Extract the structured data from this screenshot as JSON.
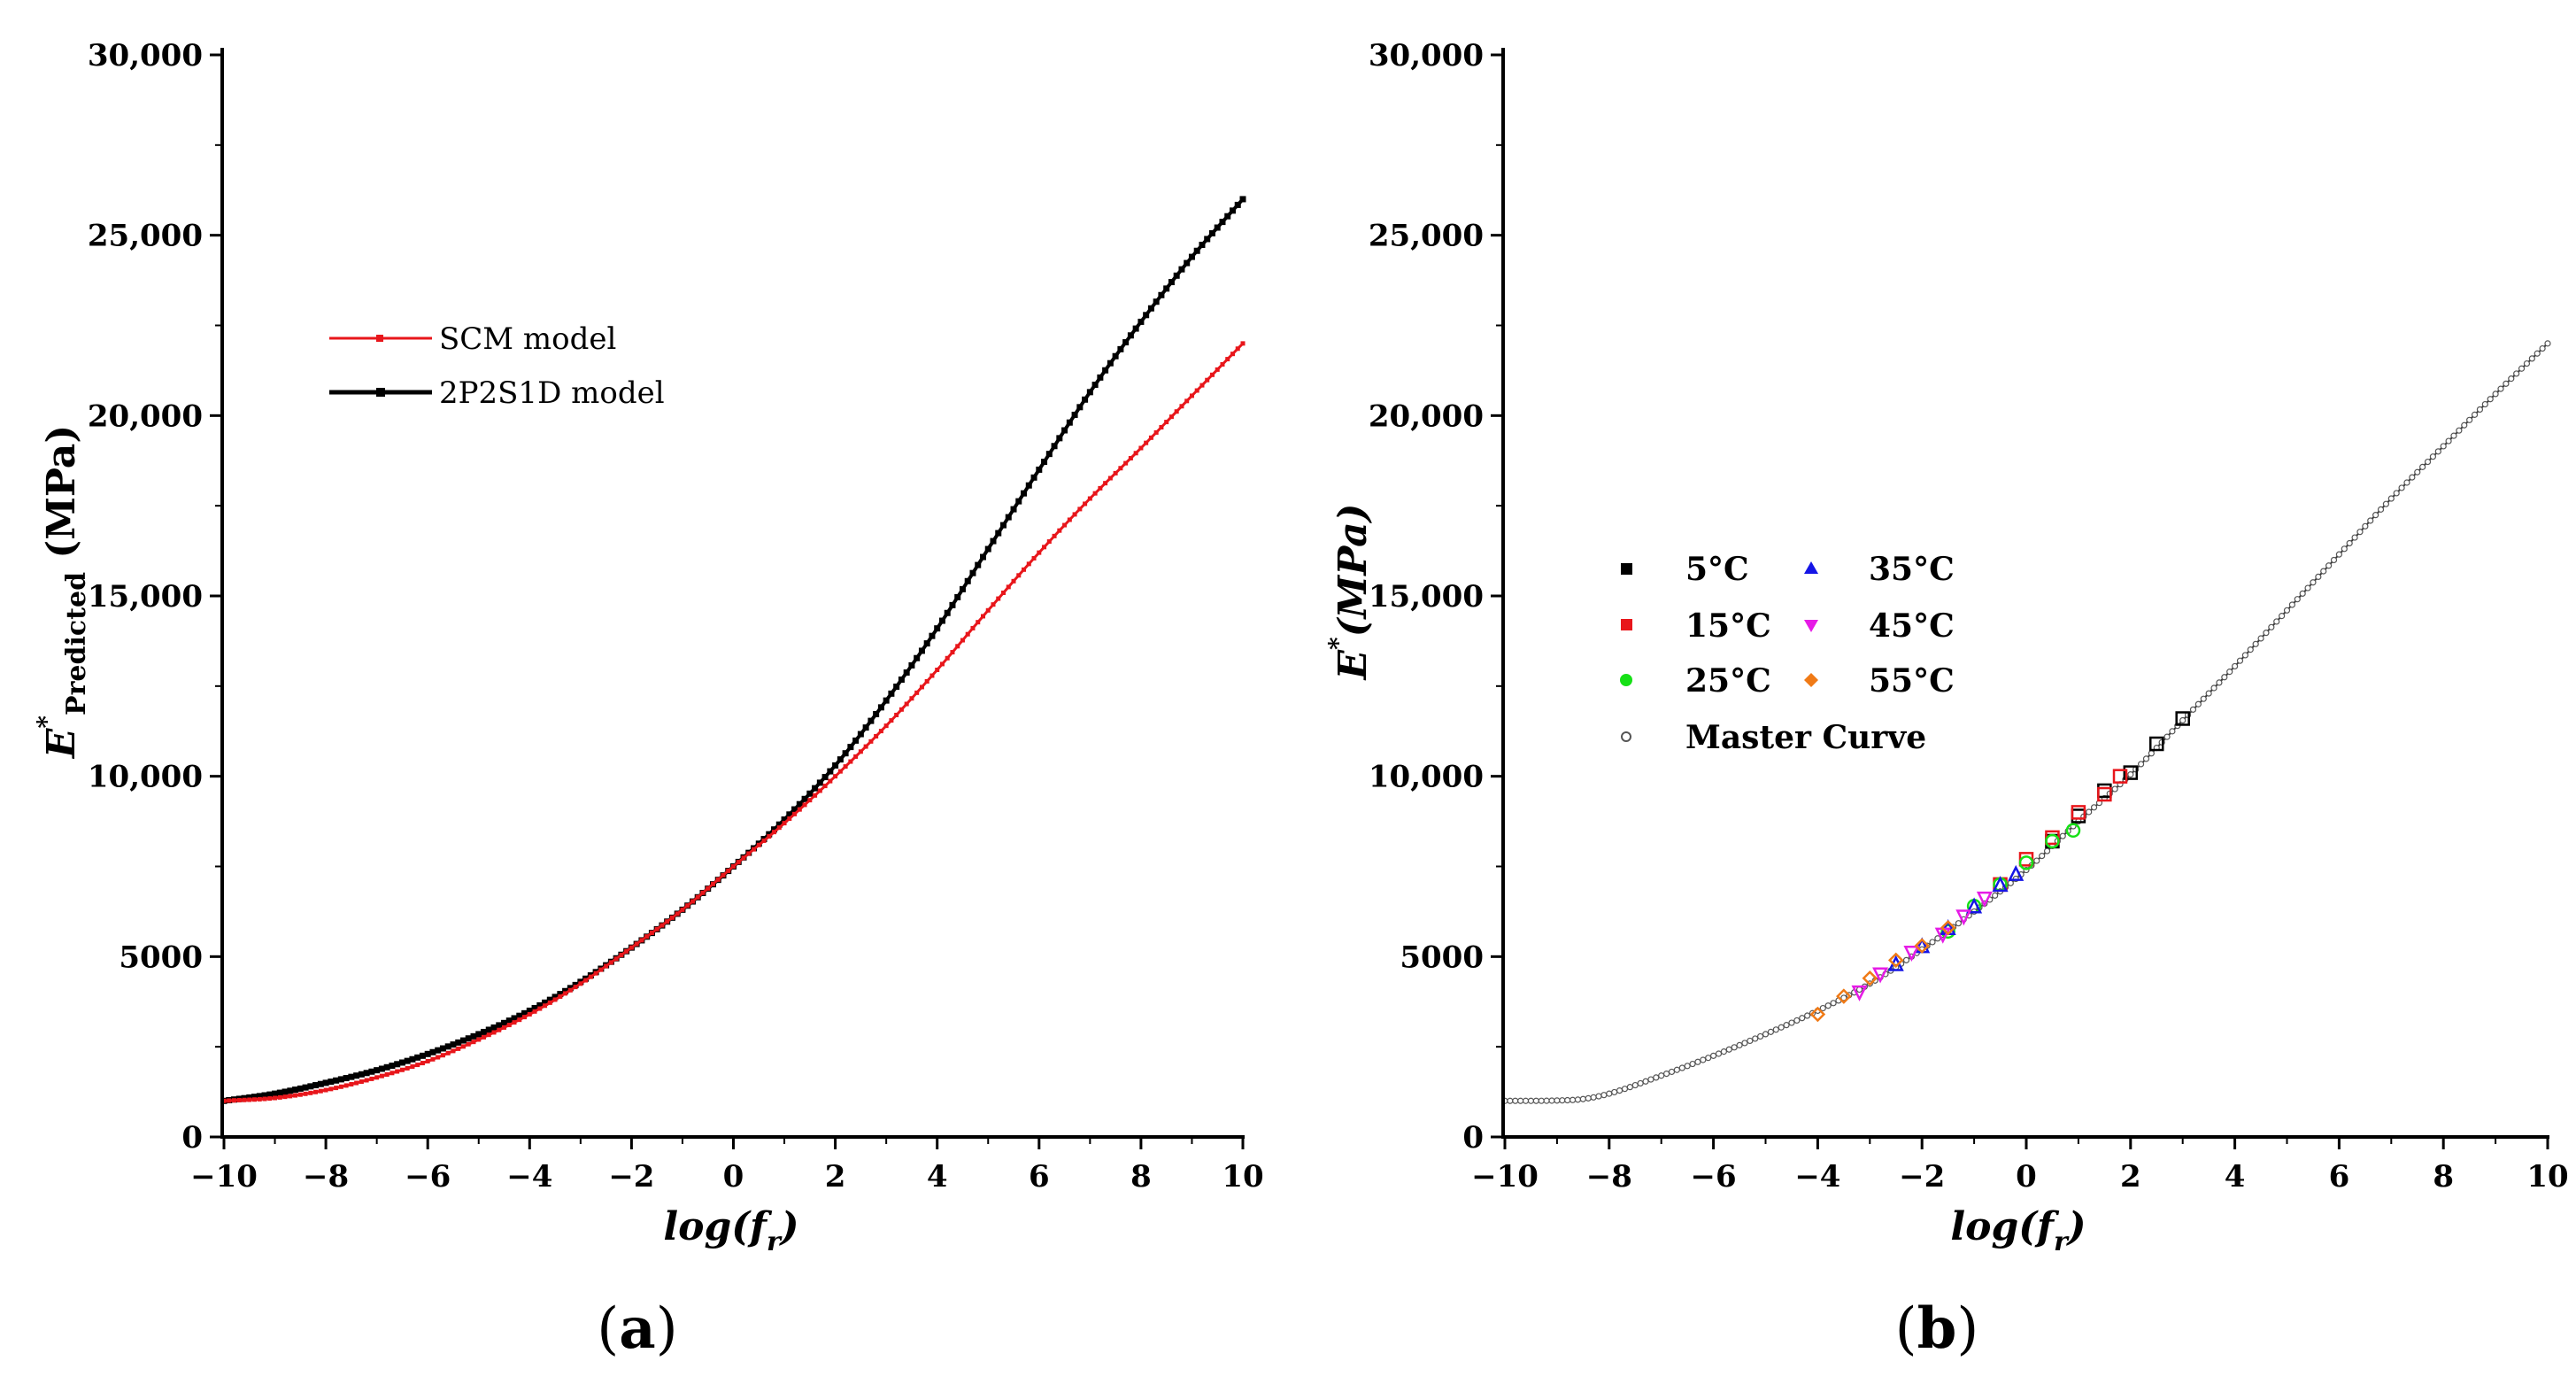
{
  "chart_data": [
    {
      "type": "line",
      "panel": "(a)",
      "panel_letter": "a",
      "xlabel_main": "log(f",
      "xlabel_sub": "r",
      "xlabel_close": ")",
      "ylabel_main": "E",
      "ylabel_sup": "*",
      "ylabel_sub": "Predicted",
      "ylabel_unit": " (MPa)",
      "xlim": [
        -10,
        10
      ],
      "ylim": [
        0,
        30000
      ],
      "xticks": [
        -10,
        -8,
        -6,
        -4,
        -2,
        0,
        2,
        4,
        6,
        8,
        10
      ],
      "xtick_labels": [
        "−10",
        "−8",
        "−6",
        "−4",
        "−2",
        "0",
        "2",
        "4",
        "6",
        "8",
        "10"
      ],
      "yticks": [
        0,
        5000,
        10000,
        15000,
        20000,
        25000,
        30000
      ],
      "ytick_labels": [
        "0",
        "5000",
        "10,000",
        "15,000",
        "20,000",
        "25,000",
        "30,000"
      ],
      "legend": [
        {
          "label": "SCM model",
          "color": "#e8161b"
        },
        {
          "label": "2P2S1D model",
          "color": "#000000"
        }
      ],
      "series": [
        {
          "name": "SCM model",
          "color": "#e8161b",
          "x": [
            -10,
            -9,
            -8,
            -7,
            -6,
            -5,
            -4,
            -3,
            -2,
            -1,
            0,
            1,
            2,
            3,
            4,
            5,
            6,
            7,
            8,
            9,
            10
          ],
          "values": [
            1000,
            1080,
            1300,
            1650,
            2100,
            2700,
            3400,
            4250,
            5250,
            6300,
            7500,
            8700,
            10000,
            11400,
            12950,
            14600,
            16200,
            17700,
            19100,
            20550,
            22000
          ]
        },
        {
          "name": "2P2S1D model",
          "color": "#000000",
          "x": [
            -10,
            -9,
            -8,
            -7,
            -6,
            -5,
            -4,
            -3,
            -2,
            -1,
            0,
            1,
            2,
            3,
            4,
            5,
            6,
            7,
            8,
            9,
            10
          ],
          "values": [
            1000,
            1200,
            1500,
            1850,
            2300,
            2850,
            3500,
            4300,
            5250,
            6300,
            7500,
            8800,
            10300,
            12100,
            14100,
            16300,
            18500,
            20650,
            22600,
            24400,
            26000
          ]
        }
      ]
    },
    {
      "type": "scatter",
      "panel": "(b)",
      "panel_letter": "b",
      "xlabel_main": "log(f",
      "xlabel_sub": "r",
      "xlabel_close": ")",
      "ylabel_main": "E",
      "ylabel_sup": "*",
      "ylabel_unit": "(MPa)",
      "xlim": [
        -10,
        10
      ],
      "ylim": [
        0,
        30000
      ],
      "xticks": [
        -10,
        -8,
        -6,
        -4,
        -2,
        0,
        2,
        4,
        6,
        8,
        10
      ],
      "xtick_labels": [
        "−10",
        "−8",
        "−6",
        "−4",
        "−2",
        "0",
        "2",
        "4",
        "6",
        "8",
        "10"
      ],
      "yticks": [
        0,
        5000,
        10000,
        15000,
        20000,
        25000,
        30000
      ],
      "ytick_labels": [
        "0",
        "5000",
        "10,000",
        "15,000",
        "20,000",
        "25,000",
        "30,000"
      ],
      "legend": [
        {
          "label": "5°C",
          "color": "#000000",
          "marker": "square"
        },
        {
          "label": "35°C",
          "color": "#1515e6",
          "marker": "triangle-up"
        },
        {
          "label": "15°C",
          "color": "#e8161b",
          "marker": "square"
        },
        {
          "label": "45°C",
          "color": "#e61be6",
          "marker": "triangle-down"
        },
        {
          "label": "25°C",
          "color": "#16e016",
          "marker": "circle"
        },
        {
          "label": "55°C",
          "color": "#f07a16",
          "marker": "diamond"
        },
        {
          "label": "Master Curve",
          "color": "#555555",
          "marker": "open-circle"
        }
      ],
      "master_curve": {
        "name": "Master Curve",
        "x": [
          -10,
          -9,
          -8.5,
          -8,
          -7,
          -6,
          -5,
          -4,
          -3,
          -2,
          -1,
          0,
          1,
          2,
          3,
          4,
          5,
          6,
          7,
          8,
          9,
          10
        ],
        "values": [
          1000,
          1010,
          1050,
          1200,
          1700,
          2250,
          2850,
          3500,
          4250,
          5200,
          6250,
          7400,
          8750,
          10050,
          11550,
          13050,
          14600,
          16150,
          17700,
          19150,
          20600,
          22000
        ]
      },
      "series": [
        {
          "name": "5°C",
          "color": "#000000",
          "marker": "square",
          "x": [
            0.5,
            1.0,
            1.5,
            2.0,
            2.5,
            3.0
          ],
          "values": [
            8200,
            8900,
            9600,
            10100,
            10900,
            11600
          ]
        },
        {
          "name": "15°C",
          "color": "#e8161b",
          "marker": "square",
          "x": [
            -0.5,
            0.0,
            0.5,
            1.0,
            1.5,
            1.8
          ],
          "values": [
            7000,
            7700,
            8300,
            9000,
            9500,
            10000
          ]
        },
        {
          "name": "25°C",
          "color": "#16e016",
          "marker": "circle",
          "x": [
            -1.5,
            -1.0,
            -0.5,
            0.0,
            0.5,
            0.9
          ],
          "values": [
            5700,
            6400,
            7000,
            7600,
            8200,
            8500
          ]
        },
        {
          "name": "35°C",
          "color": "#1515e6",
          "marker": "triangle-up",
          "x": [
            -2.5,
            -2.0,
            -1.5,
            -1.0,
            -0.5,
            -0.2
          ],
          "values": [
            4800,
            5300,
            5800,
            6400,
            7000,
            7300
          ]
        },
        {
          "name": "45°C",
          "color": "#e61be6",
          "marker": "triangle-down",
          "x": [
            -3.2,
            -2.8,
            -2.2,
            -1.6,
            -1.2,
            -0.8
          ],
          "values": [
            4000,
            4500,
            5100,
            5600,
            6100,
            6600
          ]
        },
        {
          "name": "55°C",
          "color": "#f07a16",
          "marker": "diamond",
          "x": [
            -4.0,
            -3.5,
            -3.0,
            -2.5,
            -2.0,
            -1.5
          ],
          "values": [
            3400,
            3900,
            4400,
            4900,
            5300,
            5800
          ]
        }
      ]
    }
  ]
}
